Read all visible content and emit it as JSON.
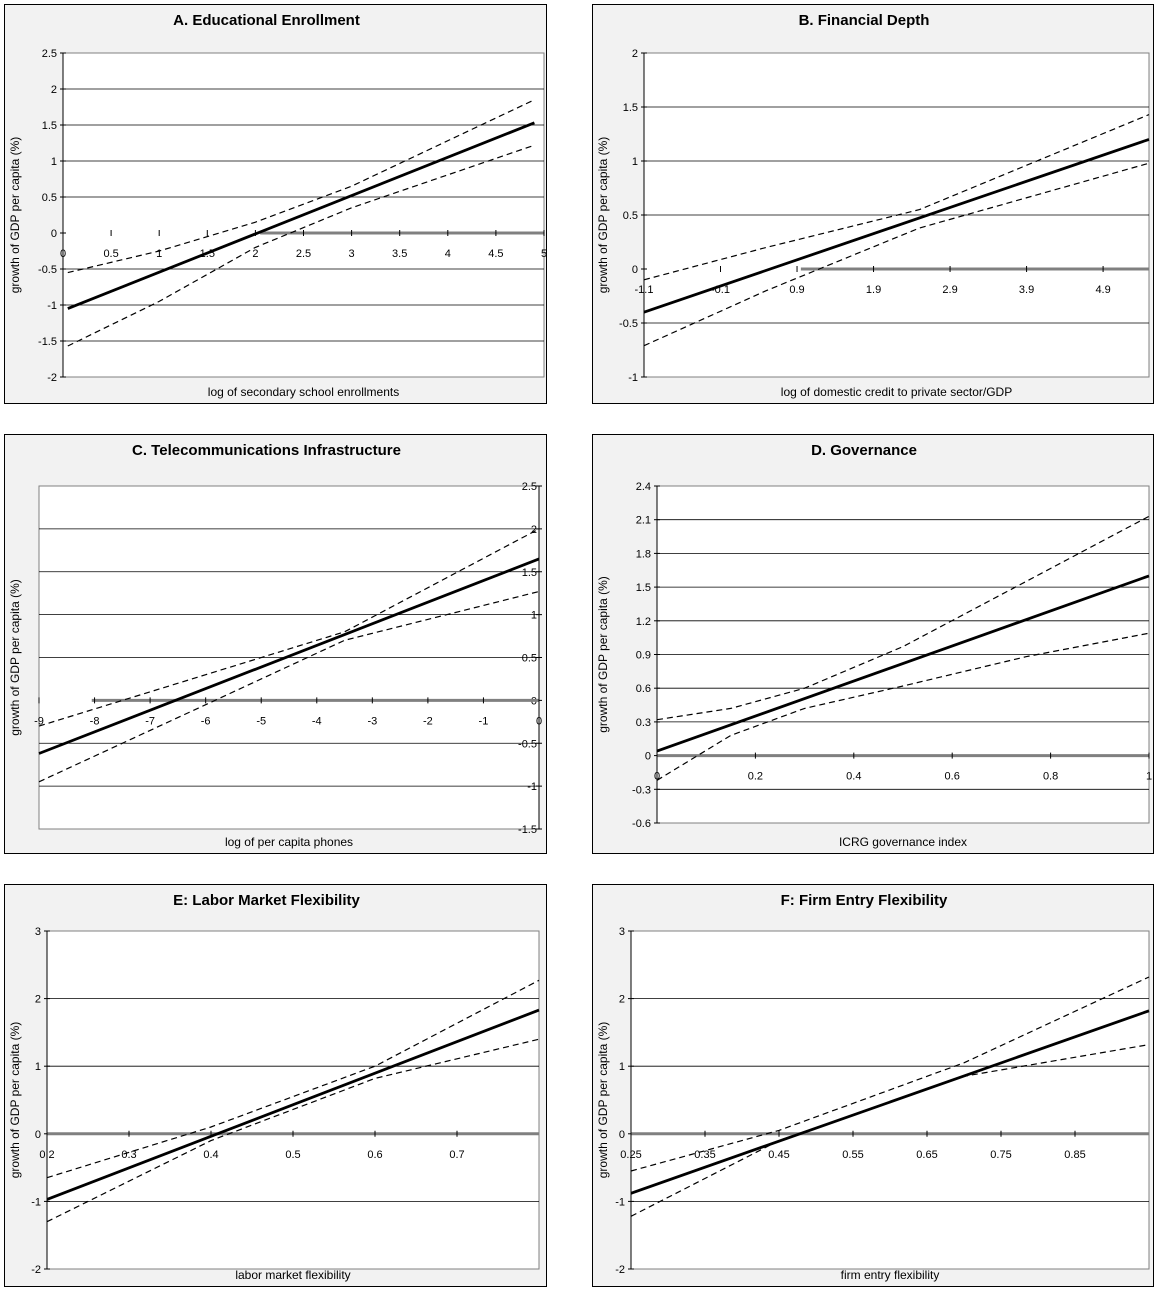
{
  "chart_data": [
    {
      "type": "line",
      "title": "A. Educational Enrollment",
      "xlabel": "log of secondary school enrollments",
      "ylabel": "growth of GDP per capita (%)",
      "xlim": [
        0,
        5
      ],
      "ylim": [
        -2,
        2.5
      ],
      "xticks": [
        "0",
        "0.5",
        "1",
        "1.5",
        "2",
        "2.5",
        "3",
        "3.5",
        "4",
        "4.5",
        "5"
      ],
      "yticks": [
        "2.5",
        "2",
        "1.5",
        "1",
        "0.5",
        "0",
        "-0.5",
        "-1",
        "-1.5",
        "-2"
      ],
      "series": [
        {
          "style": "solid",
          "x": [
            0.05,
            4.9
          ],
          "y": [
            -1.05,
            1.53
          ]
        },
        {
          "style": "dashed",
          "x": [
            0.05,
            1.0,
            2.0,
            3.0,
            4.9
          ],
          "y": [
            -0.55,
            -0.25,
            0.15,
            0.65,
            1.85
          ]
        },
        {
          "style": "dashed",
          "x": [
            0.05,
            1.0,
            2.0,
            3.0,
            4.9
          ],
          "y": [
            -1.57,
            -0.95,
            -0.2,
            0.35,
            1.22
          ]
        }
      ]
    },
    {
      "type": "line",
      "title": "B. Financial Depth",
      "xlabel": "log of domestic credit to private sector/GDP",
      "ylabel": "growth of GDP per capita (%)",
      "xlim": [
        -1.1,
        5.5
      ],
      "ylim": [
        -1,
        2
      ],
      "xticks": [
        "-1.1",
        "-0.1",
        "0.9",
        "1.9",
        "2.9",
        "3.9",
        "4.9"
      ],
      "yticks": [
        "2",
        "1.5",
        "1",
        "0.5",
        "0",
        "-0.5",
        "-1"
      ],
      "series": [
        {
          "style": "solid",
          "x": [
            -1.1,
            5.5
          ],
          "y": [
            -0.4,
            1.2
          ]
        },
        {
          "style": "dashed",
          "x": [
            -1.1,
            0.5,
            2.5,
            5.5
          ],
          "y": [
            -0.1,
            0.2,
            0.55,
            1.43
          ]
        },
        {
          "style": "dashed",
          "x": [
            -1.1,
            0.5,
            2.5,
            5.5
          ],
          "y": [
            -0.71,
            -0.2,
            0.38,
            0.98
          ]
        }
      ]
    },
    {
      "type": "line",
      "title": "C. Telecommunications Infrastructure",
      "xlabel": "log of per capita phones",
      "ylabel": "growth of GDP per capita (%)",
      "xlim": [
        -9,
        0
      ],
      "ylim": [
        -1.5,
        2.5
      ],
      "xticks": [
        "-9",
        "-8",
        "-7",
        "-6",
        "-5",
        "-4",
        "-3",
        "-2",
        "-1",
        "0"
      ],
      "yticks": [
        "2.5",
        "2",
        "1.5",
        "1",
        "0.5",
        "0",
        "-0.5",
        "-1",
        "-1.5"
      ],
      "series": [
        {
          "style": "solid",
          "x": [
            -9,
            0
          ],
          "y": [
            -0.62,
            1.65
          ]
        },
        {
          "style": "dashed",
          "x": [
            -9,
            -6,
            -3.5,
            0
          ],
          "y": [
            -0.3,
            0.3,
            0.8,
            2.0
          ]
        },
        {
          "style": "dashed",
          "x": [
            -9,
            -6,
            -3.5,
            0
          ],
          "y": [
            -0.95,
            -0.05,
            0.7,
            1.27
          ]
        }
      ]
    },
    {
      "type": "line",
      "title": "D. Governance",
      "xlabel": "ICRG governance index",
      "ylabel": "growth of GDP per capita (%)",
      "xlim": [
        0,
        1
      ],
      "ylim": [
        -0.6,
        2.4
      ],
      "xticks": [
        "0",
        "0.2",
        "0.4",
        "0.6",
        "0.8",
        "1"
      ],
      "yticks": [
        "2.4",
        "2.1",
        "1.8",
        "1.5",
        "1.2",
        "0.9",
        "0.6",
        "0.3",
        "0",
        "-0.3",
        "-0.6"
      ],
      "series": [
        {
          "style": "solid",
          "x": [
            0,
            1
          ],
          "y": [
            0.04,
            1.6
          ]
        },
        {
          "style": "dashed",
          "x": [
            0,
            0.15,
            0.3,
            0.5,
            0.75,
            1
          ],
          "y": [
            0.32,
            0.42,
            0.6,
            0.97,
            1.55,
            2.13
          ]
        },
        {
          "style": "dashed",
          "x": [
            0,
            0.15,
            0.3,
            0.5,
            0.75,
            1
          ],
          "y": [
            -0.22,
            0.18,
            0.42,
            0.62,
            0.88,
            1.09
          ]
        }
      ]
    },
    {
      "type": "line",
      "title": "E: Labor Market Flexibility",
      "xlabel": "labor market flexibility",
      "ylabel": "growth of GDP per capita (%)",
      "xlim": [
        0.2,
        0.8
      ],
      "ylim": [
        -2,
        3
      ],
      "xticks": [
        "0.2",
        "0.3",
        "0.4",
        "0.5",
        "0.6",
        "0.7"
      ],
      "yticks": [
        "3",
        "2",
        "1",
        "0",
        "-1",
        "-2"
      ],
      "series": [
        {
          "style": "solid",
          "x": [
            0.2,
            0.8
          ],
          "y": [
            -0.97,
            1.83
          ]
        },
        {
          "style": "dashed",
          "x": [
            0.2,
            0.4,
            0.6,
            0.8
          ],
          "y": [
            -0.65,
            0.1,
            1.0,
            2.27
          ]
        },
        {
          "style": "dashed",
          "x": [
            0.2,
            0.4,
            0.6,
            0.8
          ],
          "y": [
            -1.3,
            -0.1,
            0.82,
            1.4
          ]
        }
      ]
    },
    {
      "type": "line",
      "title": "F: Firm Entry Flexibility",
      "xlabel": "firm entry flexibility",
      "ylabel": "growth of GDP per capita (%)",
      "xlim": [
        0.25,
        0.95
      ],
      "ylim": [
        -2,
        3
      ],
      "xticks": [
        "0.25",
        "0.35",
        "0.45",
        "0.55",
        "0.65",
        "0.75",
        "0.85"
      ],
      "yticks": [
        "3",
        "2",
        "1",
        "0",
        "-1",
        "-2"
      ],
      "series": [
        {
          "style": "solid",
          "x": [
            0.25,
            0.95
          ],
          "y": [
            -0.88,
            1.82
          ]
        },
        {
          "style": "dashed",
          "x": [
            0.25,
            0.45,
            0.7,
            0.95
          ],
          "y": [
            -0.55,
            0.05,
            1.05,
            2.32
          ]
        },
        {
          "style": "dashed",
          "x": [
            0.25,
            0.45,
            0.7,
            0.95
          ],
          "y": [
            -1.22,
            -0.1,
            0.85,
            1.32
          ]
        }
      ]
    }
  ]
}
